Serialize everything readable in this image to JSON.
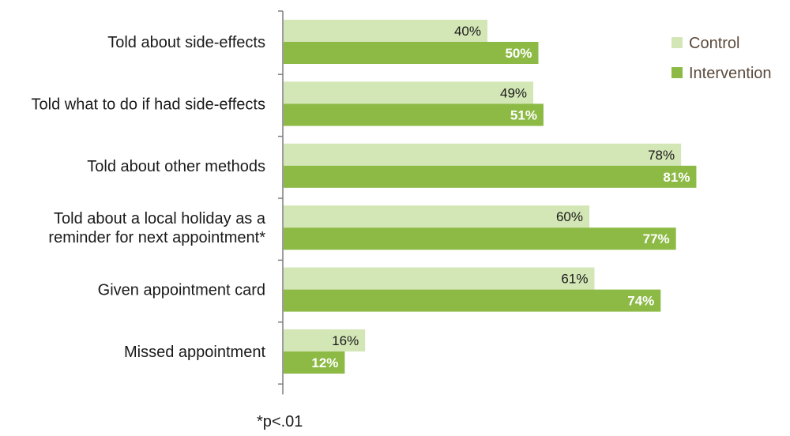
{
  "chart_data": {
    "type": "bar",
    "orientation": "horizontal",
    "categories": [
      [
        "Told about side-effects"
      ],
      [
        "Told what to do if had side-effects"
      ],
      [
        "Told about other methods"
      ],
      [
        "Told about a local holiday as a",
        "reminder for next appointment*"
      ],
      [
        "Given appointment card"
      ],
      [
        "Missed appointment"
      ]
    ],
    "series": [
      {
        "name": "Control",
        "values": [
          40,
          49,
          78,
          60,
          61,
          16
        ],
        "labels": [
          "40%",
          "49%",
          "78%",
          "60%",
          "61%",
          "16%"
        ],
        "color": "#d3e6b5"
      },
      {
        "name": "Intervention",
        "values": [
          50,
          51,
          81,
          77,
          74,
          12
        ],
        "labels": [
          "50%",
          "51%",
          "81%",
          "77%",
          "74%",
          "12%"
        ],
        "color": "#8cba45"
      }
    ],
    "xlim": [
      0,
      100
    ],
    "legend_position": "top-right",
    "grid": false
  },
  "footnote": "*p<.01"
}
